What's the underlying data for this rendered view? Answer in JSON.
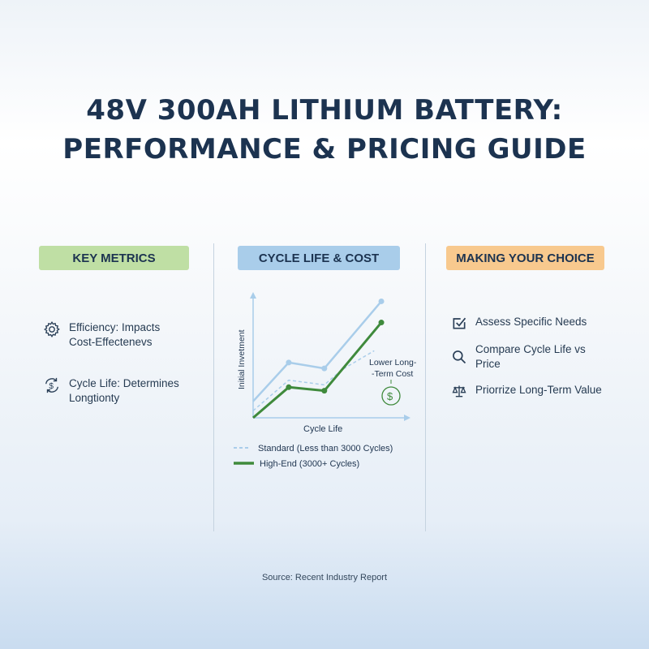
{
  "title": {
    "line1": "48V 300AH LITHIUM BATTERY:",
    "line2": "PERFORMANCE & PRICING GUIDE"
  },
  "columns": {
    "metrics": {
      "label": "KEY METRICS",
      "color": "#bfdfa4",
      "items": [
        {
          "icon": "gear-icon",
          "line1": "Efficiency: Impacts",
          "line2": "Cost-Effectenevs"
        },
        {
          "icon": "dollar-cycle-icon",
          "line1": "Cycle Life: Determines",
          "line2": "Longtionty"
        }
      ]
    },
    "chart": {
      "label": "CYCLE LIFE & COST",
      "color": "#a9cdea"
    },
    "choice": {
      "label": "MAKING YOUR CHOICE",
      "color": "#f8c98e",
      "items": [
        {
          "icon": "checkbox-icon",
          "line1": "Assess Specific Needs",
          "line2": ""
        },
        {
          "icon": "search-icon",
          "line1": "Compare Cycle Life vs",
          "line2": "Price"
        },
        {
          "icon": "scale-icon",
          "line1": "Priorrize Long-Term Value",
          "line2": ""
        }
      ]
    }
  },
  "chart_data": {
    "type": "line",
    "xlabel": "Cycle Life",
    "ylabel": "Initial Invetment",
    "xlim": [
      0,
      4.1
    ],
    "ylim": [
      0,
      100
    ],
    "series": [
      {
        "name": "Reference",
        "color": "#a9cdea",
        "style": "solid",
        "x": [
          0,
          1,
          2,
          3.6
        ],
        "y": [
          14,
          47,
          42,
          99
        ]
      },
      {
        "name": "Standard (Less than 3000 Cycles)",
        "color": "#a9cdea",
        "style": "dashed",
        "x": [
          0,
          1,
          2,
          2.5,
          3.4
        ],
        "y": [
          6,
          32,
          28,
          41,
          57
        ]
      },
      {
        "name": "High-End (3000+ Cycles)",
        "color": "#3f8a3c",
        "style": "solid",
        "x": [
          0,
          1,
          2,
          3.6
        ],
        "y": [
          0,
          26,
          23,
          81
        ]
      }
    ],
    "annotation": {
      "line1": "Lower Long-",
      "line2": "-Term Cost"
    },
    "legend": [
      "Standard (Less than 3000 Cycles)",
      "High-End (3000+ Cycles)"
    ]
  },
  "source": "Source: Recent Industry Report"
}
